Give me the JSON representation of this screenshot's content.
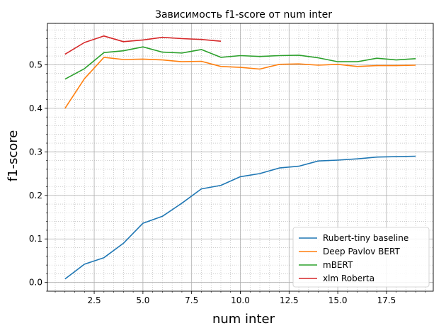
{
  "chart_data": {
    "type": "line",
    "title": "Зависимость f1-score от num inter",
    "xlabel": "num inter",
    "ylabel": "f1-score",
    "xlim": [
      0.1,
      19.9
    ],
    "ylim": [
      -0.02,
      0.595
    ],
    "xticks": [
      2.5,
      5.0,
      7.5,
      10.0,
      12.5,
      15.0,
      17.5
    ],
    "xtick_labels": [
      "2.5",
      "5.0",
      "7.5",
      "10.0",
      "12.5",
      "15.0",
      "17.5"
    ],
    "yticks": [
      0.0,
      0.1,
      0.2,
      0.3,
      0.4,
      0.5
    ],
    "ytick_labels": [
      "0.0",
      "0.1",
      "0.2",
      "0.3",
      "0.4",
      "0.5"
    ],
    "grid": true,
    "minor_grid": true,
    "legend_position": "lower-right",
    "series": [
      {
        "name": "Rubert-tiny baseline",
        "color": "#1f77b4",
        "x": [
          1,
          2,
          3,
          4,
          5,
          6,
          7,
          8,
          9,
          10,
          11,
          12,
          13,
          14,
          15,
          16,
          17,
          18,
          19
        ],
        "values": [
          0.008,
          0.042,
          0.057,
          0.09,
          0.136,
          0.152,
          0.182,
          0.215,
          0.223,
          0.243,
          0.25,
          0.263,
          0.267,
          0.279,
          0.281,
          0.284,
          0.288,
          0.289,
          0.29
        ]
      },
      {
        "name": "Deep Pavlov BERT",
        "color": "#ff7f0e",
        "x": [
          1,
          2,
          3,
          4,
          5,
          6,
          7,
          8,
          9,
          10,
          11,
          12,
          13,
          14,
          15,
          16,
          17,
          18,
          19
        ],
        "values": [
          0.4,
          0.468,
          0.517,
          0.512,
          0.513,
          0.511,
          0.507,
          0.508,
          0.496,
          0.494,
          0.49,
          0.501,
          0.502,
          0.499,
          0.501,
          0.496,
          0.498,
          0.498,
          0.499
        ]
      },
      {
        "name": "mBERT",
        "color": "#2ca02c",
        "x": [
          1,
          2,
          3,
          4,
          5,
          6,
          7,
          8,
          9,
          10,
          11,
          12,
          13,
          14,
          15,
          16,
          17,
          18,
          19
        ],
        "values": [
          0.467,
          0.491,
          0.528,
          0.532,
          0.541,
          0.529,
          0.527,
          0.535,
          0.517,
          0.521,
          0.519,
          0.521,
          0.522,
          0.516,
          0.507,
          0.507,
          0.515,
          0.511,
          0.514
        ]
      },
      {
        "name": "xlm Roberta",
        "color": "#d62728",
        "x": [
          1,
          2,
          3,
          4,
          5,
          6,
          7,
          8,
          9
        ],
        "values": [
          0.524,
          0.551,
          0.566,
          0.553,
          0.557,
          0.563,
          0.56,
          0.558,
          0.554
        ]
      }
    ]
  }
}
